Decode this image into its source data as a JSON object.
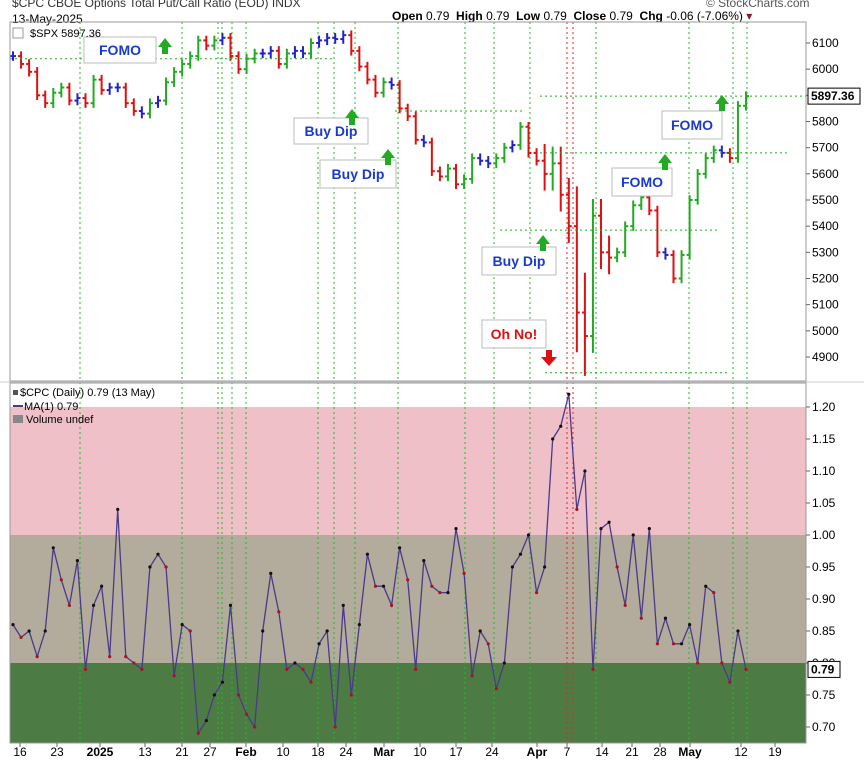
{
  "header": {
    "title": "$CPC CBOE Options Total Put/Call Ratio (EOD) INDX",
    "date": "13-May-2025",
    "ohlc_open_label": "Open",
    "ohlc_open": "0.79",
    "ohlc_high_label": "High",
    "ohlc_high": "0.79",
    "ohlc_low_label": "Low",
    "ohlc_low": "0.79",
    "ohlc_close_label": "Close",
    "ohlc_close": "0.79",
    "chg_label": "Chg",
    "chg": "-0.06 (-7.06%)",
    "watermark": "© StockCharts.com"
  },
  "upper_legend": "$SPX 5897.36",
  "lower_legend": [
    "$CPC (Daily) 0.79 (13 May)",
    "MA(1) 0.79",
    "Volume undef"
  ],
  "colors": {
    "up": "#22aa22",
    "down": "#dd1111",
    "neutral": "#2222cc",
    "ma": "#4a3a8a",
    "zone_high": "#efc0c8",
    "zone_mid": "#b3ab9c",
    "zone_low": "#4c7c44",
    "vline": "#22bb22",
    "vline_red": "#ee2222",
    "annot_text": "#1a3acc",
    "annot_red": "#dd1111"
  },
  "chart_data": [
    {
      "type": "ohlc",
      "title": "$SPX",
      "last_value_label": "5897.36",
      "ylim": [
        4800,
        6150
      ],
      "y_ticks": [
        4900,
        5000,
        5100,
        5200,
        5300,
        5400,
        5500,
        5600,
        5700,
        5800,
        5900,
        6000,
        6100
      ],
      "annotations": [
        "FOMO",
        "Buy Dip",
        "Buy Dip",
        "Buy Dip",
        "Oh No!",
        "FOMO",
        "FOMO"
      ]
    },
    {
      "type": "line",
      "title": "$CPC (Daily)",
      "series_name": "MA(1)",
      "last_value_label": "0.79",
      "ylim": [
        0.675,
        1.225
      ],
      "y_ticks": [
        0.7,
        0.75,
        0.8,
        0.85,
        0.9,
        0.95,
        1.0,
        1.05,
        1.1,
        1.15,
        1.2
      ],
      "zones": [
        {
          "from": 1.0,
          "to": 1.2,
          "label": "high"
        },
        {
          "from": 0.8,
          "to": 1.0,
          "label": "mid"
        },
        {
          "from": 0.675,
          "to": 0.8,
          "label": "low"
        }
      ],
      "values": [
        0.86,
        0.84,
        0.85,
        0.81,
        0.85,
        0.98,
        0.93,
        0.89,
        0.96,
        0.79,
        0.89,
        0.92,
        0.81,
        1.04,
        0.81,
        0.8,
        0.79,
        0.95,
        0.97,
        0.95,
        0.78,
        0.86,
        0.85,
        0.69,
        0.71,
        0.75,
        0.77,
        0.89,
        0.75,
        0.72,
        0.7,
        0.85,
        0.94,
        0.88,
        0.79,
        0.8,
        0.79,
        0.77,
        0.83,
        0.85,
        0.7,
        0.89,
        0.75,
        0.86,
        0.97,
        0.92,
        0.92,
        0.89,
        0.98,
        0.93,
        0.79,
        0.96,
        0.92,
        0.91,
        0.91,
        1.01,
        0.94,
        0.78,
        0.85,
        0.83,
        0.76,
        0.8,
        0.95,
        0.97,
        1.0,
        0.91,
        0.95,
        1.15,
        1.17,
        1.22,
        1.04,
        1.1,
        0.79,
        1.01,
        1.02,
        0.95,
        0.89,
        1.0,
        0.87,
        1.01,
        0.83,
        0.87,
        0.83,
        0.83,
        0.86,
        0.8,
        0.92,
        0.91,
        0.8,
        0.77,
        0.85,
        0.79
      ]
    }
  ],
  "x_ticks": [
    "16",
    "23",
    "2025",
    "13",
    "21",
    "27",
    "Feb",
    "10",
    "18",
    "24",
    "Mar",
    "10",
    "17",
    "24",
    "Apr",
    "7",
    "14",
    "21",
    "28",
    "May",
    "12",
    "19"
  ]
}
